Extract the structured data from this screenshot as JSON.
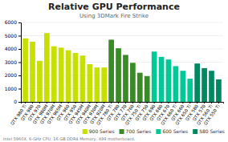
{
  "chart_data": {
    "type": "bar",
    "title": "Relative GPU Performance",
    "subtitle": "Using 3DMark Fire Strike",
    "categories": [
      "GTX 980 Ti",
      "GTX 980",
      "GTX 970",
      "GTX 980M",
      "GTX 970M",
      "GTX 965M",
      "GTX 960",
      "GTX 950",
      "GTX 945M",
      "GTX 940M",
      "GTX 930M",
      "GTX 920M",
      "GTX 780 Ti",
      "GTX 780",
      "GTX 770",
      "GTX 760",
      "GTX 750 Ti",
      "GTX 750",
      "GTX 690",
      "GTX 680",
      "GTX 670",
      "GTX 660 Ti",
      "GTX 660",
      "GTX 650 Ti",
      "GTX 580",
      "GTX 570",
      "GTX 560 Ti",
      "GTX 550 Ti"
    ],
    "series": [
      {
        "name": "900 Series",
        "color": "#c8e000",
        "values": [
          4800,
          4550,
          3100,
          5200,
          4200,
          4100,
          3900,
          3700,
          3500,
          2850,
          2600,
          2600,
          null,
          null,
          null,
          null,
          null,
          null,
          null,
          null,
          null,
          null,
          null,
          null,
          null,
          null,
          null,
          null
        ]
      },
      {
        "name": "700 Series",
        "color": "#3a8a28",
        "values": [
          null,
          null,
          null,
          null,
          null,
          null,
          null,
          null,
          null,
          null,
          null,
          null,
          4700,
          4050,
          3550,
          2950,
          2200,
          1950,
          null,
          null,
          null,
          null,
          null,
          null,
          null,
          null,
          null,
          null
        ]
      },
      {
        "name": "600 Series",
        "color": "#00c896",
        "values": [
          null,
          null,
          null,
          null,
          null,
          null,
          null,
          null,
          null,
          null,
          null,
          null,
          null,
          null,
          null,
          null,
          null,
          null,
          3800,
          3400,
          3200,
          2700,
          2350,
          1750,
          null,
          null,
          null,
          null
        ]
      },
      {
        "name": "580 Series",
        "color": "#008860",
        "values": [
          null,
          null,
          null,
          null,
          null,
          null,
          null,
          null,
          null,
          null,
          null,
          null,
          null,
          null,
          null,
          null,
          null,
          null,
          null,
          null,
          null,
          null,
          null,
          null,
          2900,
          2550,
          2350,
          1700
        ]
      }
    ],
    "stacked": true,
    "ylim": [
      0,
      6000
    ],
    "yticks": [
      0,
      1000,
      2000,
      3000,
      4000,
      5000,
      6000
    ],
    "grid": true,
    "legend": "lower right",
    "annotations": [
      "Intel 5960X, 6-GHz CPU, 16 GB DDR4 Memory, X99 motherboard."
    ]
  }
}
